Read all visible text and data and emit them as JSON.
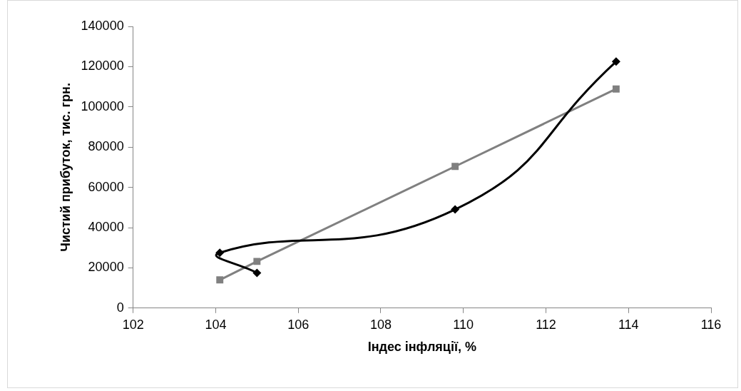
{
  "chart_data": {
    "type": "scatter",
    "xlabel": "Індес інфляції, %",
    "ylabel": "Чистий прибуток, тис. грн.",
    "xlim": [
      102,
      116
    ],
    "xticks": [
      102,
      104,
      106,
      108,
      110,
      112,
      114,
      116
    ],
    "ylim": [
      0,
      140000
    ],
    "yticks": [
      0,
      20000,
      40000,
      60000,
      80000,
      100000,
      120000,
      140000
    ],
    "grid": false,
    "legend": false,
    "series": [
      {
        "type": "line",
        "color": "#000000",
        "marker": "diamond",
        "line_style": "solid",
        "x": [
          105,
          104.1,
          109.8,
          113.7
        ],
        "values": [
          17500,
          27500,
          49000,
          122500
        ]
      },
      {
        "type": "line",
        "color": "#808080",
        "marker": "square",
        "line_style": "solid",
        "x": [
          104.1,
          105,
          109.8,
          113.7
        ],
        "values": [
          14000,
          23200,
          70400,
          108900
        ]
      }
    ]
  }
}
